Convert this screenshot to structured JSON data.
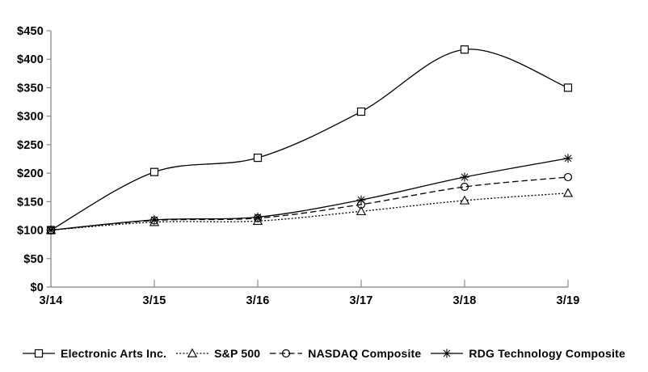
{
  "chart_data": {
    "type": "line",
    "title": "",
    "categories": [
      "3/14",
      "3/15",
      "3/16",
      "3/17",
      "3/18",
      "3/19"
    ],
    "y_axis": {
      "min": 0,
      "max": 450,
      "step": 50,
      "tick_labels": [
        "$0",
        "$50",
        "$100",
        "$150",
        "$200",
        "$250",
        "$300",
        "$350",
        "$400",
        "$450"
      ]
    },
    "series": [
      {
        "name": "Electronic Arts Inc.",
        "marker": "square",
        "line_style": "solid",
        "values": [
          100,
          202,
          227,
          308,
          417,
          350
        ]
      },
      {
        "name": "S&P 500",
        "marker": "triangle",
        "line_style": "dotted",
        "values": [
          100,
          114,
          116,
          133,
          152,
          165
        ]
      },
      {
        "name": "NASDAQ Composite",
        "marker": "circle",
        "line_style": "dashed",
        "values": [
          100,
          117,
          121,
          145,
          176,
          193
        ]
      },
      {
        "name": "RDG Technology Composite",
        "marker": "asterisk",
        "line_style": "solid",
        "values": [
          100,
          118,
          123,
          153,
          193,
          226
        ]
      }
    ],
    "colors": {
      "series": "#000000",
      "axis": "#808080",
      "text": "#000000",
      "background": "#ffffff"
    },
    "legend_position": "bottom",
    "grid": false
  }
}
